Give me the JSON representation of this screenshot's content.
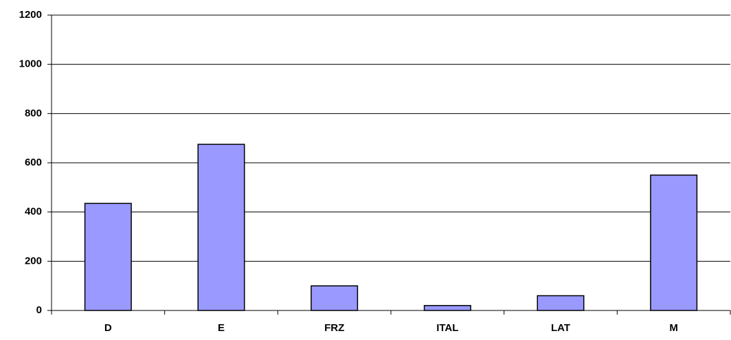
{
  "chart_data": {
    "type": "bar",
    "categories": [
      "D",
      "E",
      "FRZ",
      "ITAL",
      "LAT",
      "M"
    ],
    "values": [
      435,
      675,
      100,
      20,
      60,
      550
    ],
    "color": "#9999ff",
    "ylim": [
      0,
      1200
    ],
    "yticks": [
      0,
      200,
      400,
      600,
      800,
      1000,
      1200
    ],
    "grid": true
  }
}
